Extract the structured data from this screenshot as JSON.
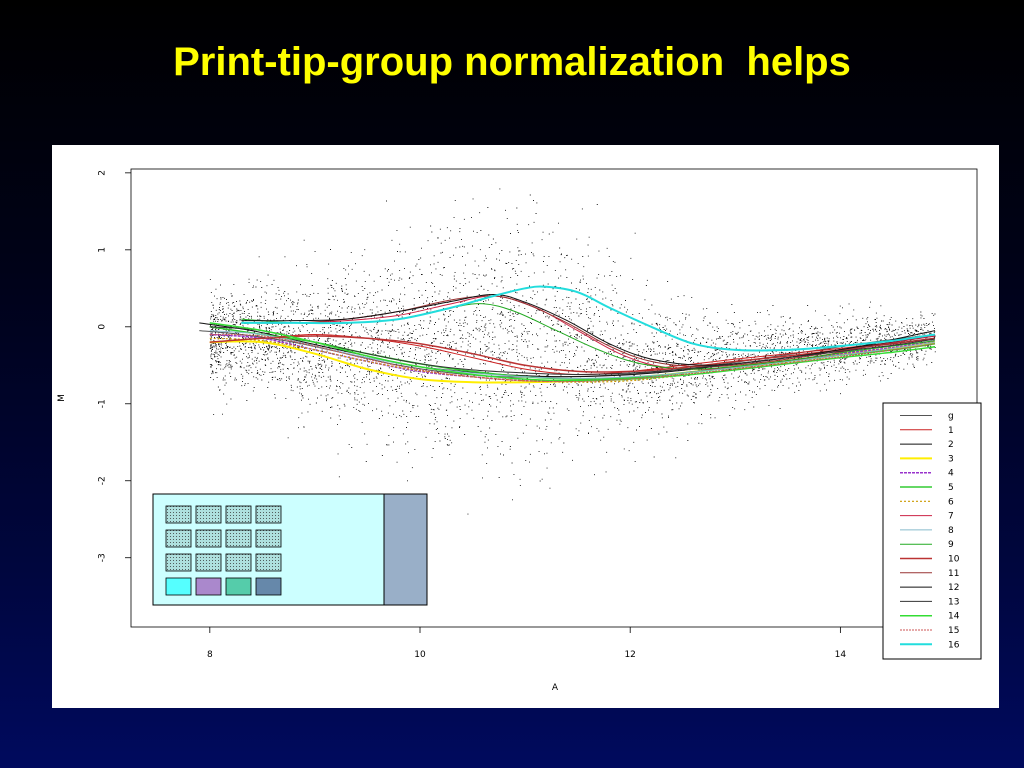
{
  "slide": {
    "title": "Print-tip-group normalization  helps"
  },
  "colors": {
    "title": "#ffff00",
    "panel_bg": "#ffffff",
    "array_bg": "#ccffff",
    "array_bar": "#99afc8",
    "tip_pad_fill": "#aee0de"
  },
  "chart_data": {
    "type": "scatter",
    "xlabel": "A",
    "ylabel": "M",
    "xlim": [
      7.25,
      15.3
    ],
    "ylim": [
      -3.9,
      2.05
    ],
    "x_ticks": [
      8,
      10,
      12,
      14
    ],
    "y_ticks": [
      2,
      1,
      0,
      -1,
      -2,
      -3
    ],
    "grid": false,
    "legend_position": "bottom-right",
    "scatter_cloud": {
      "description_points": "approx 5000 points clustered around M=0 at A 8-10, spreading up to M~1.8 near A=11 and tapering to M~-0.2 at A 13-15",
      "bands": [
        {
          "a": 8.0,
          "center": -0.15,
          "spread": 0.28
        },
        {
          "a": 8.5,
          "center": -0.15,
          "spread": 0.35
        },
        {
          "a": 9.0,
          "center": -0.25,
          "spread": 0.45
        },
        {
          "a": 9.5,
          "center": -0.3,
          "spread": 0.55
        },
        {
          "a": 10.0,
          "center": -0.3,
          "spread": 0.65
        },
        {
          "a": 10.5,
          "center": -0.2,
          "spread": 0.75
        },
        {
          "a": 11.0,
          "center": -0.15,
          "spread": 0.75
        },
        {
          "a": 11.5,
          "center": -0.3,
          "spread": 0.6
        },
        {
          "a": 12.0,
          "center": -0.45,
          "spread": 0.45
        },
        {
          "a": 12.5,
          "center": -0.5,
          "spread": 0.35
        },
        {
          "a": 13.0,
          "center": -0.45,
          "spread": 0.28
        },
        {
          "a": 13.5,
          "center": -0.35,
          "spread": 0.22
        },
        {
          "a": 14.0,
          "center": -0.25,
          "spread": 0.2
        },
        {
          "a": 14.5,
          "center": -0.2,
          "spread": 0.18
        },
        {
          "a": 14.8,
          "center": -0.15,
          "spread": 0.15
        }
      ]
    },
    "series": [
      {
        "name": "g",
        "color": "#555555",
        "dash": "",
        "width": 1,
        "x": [
          7.9,
          8.3,
          8.8,
          9.3,
          9.8,
          10.3,
          10.8,
          11.3,
          11.8,
          12.3,
          12.8,
          13.3,
          13.8,
          14.3,
          14.9
        ],
        "y": [
          -0.05,
          -0.1,
          -0.2,
          -0.35,
          -0.5,
          -0.6,
          -0.65,
          -0.65,
          -0.63,
          -0.58,
          -0.5,
          -0.4,
          -0.3,
          -0.2,
          -0.1
        ]
      },
      {
        "name": "1",
        "color": "#cc2222",
        "dash": "",
        "width": 1,
        "x": [
          8.0,
          8.5,
          9.0,
          9.5,
          10.0,
          10.5,
          11.0,
          11.5,
          12.0,
          12.5,
          13.0,
          13.5,
          14.0,
          14.5,
          14.9
        ],
        "y": [
          -0.2,
          -0.15,
          -0.1,
          -0.15,
          -0.25,
          -0.4,
          -0.55,
          -0.62,
          -0.58,
          -0.5,
          -0.42,
          -0.35,
          -0.28,
          -0.2,
          -0.1
        ]
      },
      {
        "name": "2",
        "color": "#111111",
        "dash": "",
        "width": 1,
        "x": [
          7.9,
          8.4,
          8.9,
          9.4,
          9.9,
          10.4,
          10.9,
          11.4,
          11.9,
          12.4,
          12.9,
          13.4,
          13.9,
          14.4,
          14.9
        ],
        "y": [
          0.05,
          -0.05,
          -0.2,
          -0.35,
          -0.5,
          -0.58,
          -0.63,
          -0.65,
          -0.63,
          -0.58,
          -0.5,
          -0.42,
          -0.32,
          -0.22,
          -0.12
        ]
      },
      {
        "name": "3",
        "color": "#ffee00",
        "dash": "",
        "width": 2,
        "x": [
          8.0,
          8.5,
          9.0,
          9.5,
          10.0,
          10.5,
          11.0,
          11.5,
          12.0,
          12.5,
          13.0,
          13.5,
          14.0,
          14.5,
          14.9
        ],
        "y": [
          -0.2,
          -0.2,
          -0.35,
          -0.55,
          -0.68,
          -0.72,
          -0.72,
          -0.7,
          -0.66,
          -0.6,
          -0.52,
          -0.44,
          -0.36,
          -0.28,
          -0.2
        ]
      },
      {
        "name": "4",
        "color": "#9933cc",
        "dash": "3,1",
        "width": 1.5,
        "x": [
          8.0,
          8.5,
          9.0,
          9.5,
          10.0,
          10.5,
          11.0,
          11.5,
          12.0,
          12.5,
          13.0,
          13.5,
          14.0,
          14.5,
          14.9
        ],
        "y": [
          -0.1,
          -0.15,
          -0.3,
          -0.45,
          -0.58,
          -0.65,
          -0.7,
          -0.7,
          -0.67,
          -0.6,
          -0.52,
          -0.44,
          -0.35,
          -0.27,
          -0.18
        ]
      },
      {
        "name": "5",
        "color": "#33cc33",
        "dash": "",
        "width": 1.5,
        "x": [
          8.0,
          8.5,
          9.0,
          9.5,
          10.0,
          10.5,
          11.0,
          11.5,
          12.0,
          12.5,
          13.0,
          13.5,
          14.0,
          14.5,
          14.9
        ],
        "y": [
          0.0,
          -0.1,
          -0.2,
          -0.35,
          -0.48,
          -0.58,
          -0.65,
          -0.68,
          -0.66,
          -0.6,
          -0.53,
          -0.45,
          -0.37,
          -0.3,
          -0.22
        ]
      },
      {
        "name": "6",
        "color": "#cc9900",
        "dash": "2,2",
        "width": 1.2,
        "x": [
          8.0,
          8.5,
          9.0,
          9.5,
          10.0,
          10.5,
          11.0,
          11.5,
          12.0,
          12.5,
          13.0,
          13.5,
          14.0,
          14.5,
          14.9
        ],
        "y": [
          -0.15,
          -0.18,
          -0.3,
          -0.45,
          -0.57,
          -0.65,
          -0.7,
          -0.72,
          -0.7,
          -0.63,
          -0.55,
          -0.46,
          -0.37,
          -0.28,
          -0.2
        ]
      },
      {
        "name": "7",
        "color": "#cc2244",
        "dash": "",
        "width": 1,
        "x": [
          8.3,
          8.8,
          9.3,
          9.8,
          10.3,
          10.7,
          11.1,
          11.5,
          11.9,
          12.3,
          12.8,
          13.3,
          13.8,
          14.3,
          14.9
        ],
        "y": [
          0.05,
          0.05,
          0.08,
          0.15,
          0.3,
          0.4,
          0.25,
          -0.05,
          -0.35,
          -0.52,
          -0.55,
          -0.48,
          -0.38,
          -0.25,
          -0.12
        ]
      },
      {
        "name": "8",
        "color": "#88bbcc",
        "dash": "",
        "width": 1,
        "x": [
          8.0,
          8.5,
          9.0,
          9.5,
          10.0,
          10.5,
          11.0,
          11.5,
          12.0,
          12.5,
          13.0,
          13.5,
          14.0,
          14.5,
          14.9
        ],
        "y": [
          -0.05,
          -0.1,
          -0.25,
          -0.4,
          -0.52,
          -0.6,
          -0.65,
          -0.67,
          -0.65,
          -0.6,
          -0.53,
          -0.45,
          -0.37,
          -0.28,
          -0.2
        ]
      },
      {
        "name": "9",
        "color": "#22aa22",
        "dash": "",
        "width": 1,
        "x": [
          8.3,
          8.8,
          9.3,
          9.8,
          10.3,
          10.6,
          10.9,
          11.3,
          11.7,
          12.1,
          12.6,
          13.1,
          13.6,
          14.1,
          14.9
        ],
        "y": [
          0.1,
          0.05,
          0.05,
          0.1,
          0.25,
          0.3,
          0.2,
          -0.05,
          -0.3,
          -0.48,
          -0.55,
          -0.5,
          -0.42,
          -0.32,
          -0.18
        ]
      },
      {
        "name": "10",
        "color": "#bb3333",
        "dash": "",
        "width": 1.5,
        "x": [
          8.0,
          8.5,
          9.0,
          9.5,
          10.0,
          10.5,
          11.0,
          11.5,
          12.0,
          12.5,
          13.0,
          13.5,
          14.0,
          14.5,
          14.9
        ],
        "y": [
          -0.2,
          -0.15,
          -0.12,
          -0.15,
          -0.22,
          -0.35,
          -0.5,
          -0.58,
          -0.58,
          -0.53,
          -0.45,
          -0.38,
          -0.3,
          -0.22,
          -0.15
        ]
      },
      {
        "name": "11",
        "color": "#993333",
        "dash": "",
        "width": 1,
        "x": [
          8.3,
          8.8,
          9.3,
          9.8,
          10.3,
          10.7,
          11.0,
          11.4,
          11.8,
          12.2,
          12.7,
          13.2,
          13.7,
          14.2,
          14.9
        ],
        "y": [
          0.05,
          0.05,
          0.1,
          0.2,
          0.35,
          0.4,
          0.3,
          0.05,
          -0.25,
          -0.45,
          -0.52,
          -0.47,
          -0.38,
          -0.27,
          -0.15
        ]
      },
      {
        "name": "12",
        "color": "#111111",
        "dash": "",
        "width": 1,
        "x": [
          8.3,
          8.8,
          9.3,
          9.8,
          10.3,
          10.7,
          11.0,
          11.4,
          11.8,
          12.2,
          12.7,
          13.2,
          13.7,
          14.2,
          14.9
        ],
        "y": [
          0.08,
          0.08,
          0.1,
          0.2,
          0.33,
          0.42,
          0.32,
          0.08,
          -0.22,
          -0.42,
          -0.5,
          -0.45,
          -0.36,
          -0.25,
          -0.05
        ]
      },
      {
        "name": "13",
        "color": "#333333",
        "dash": "",
        "width": 1,
        "x": [
          8.0,
          8.5,
          9.0,
          9.5,
          10.0,
          10.5,
          11.0,
          11.5,
          12.0,
          12.5,
          13.0,
          13.5,
          14.0,
          14.5,
          14.9
        ],
        "y": [
          0.0,
          -0.05,
          -0.2,
          -0.35,
          -0.48,
          -0.56,
          -0.6,
          -0.62,
          -0.6,
          -0.55,
          -0.48,
          -0.4,
          -0.32,
          -0.24,
          -0.16
        ]
      },
      {
        "name": "14",
        "color": "#33dd33",
        "dash": "",
        "width": 1.5,
        "x": [
          8.0,
          8.5,
          9.0,
          9.5,
          10.0,
          10.5,
          11.0,
          11.5,
          12.0,
          12.5,
          13.0,
          13.5,
          14.0,
          14.5,
          14.9
        ],
        "y": [
          0.05,
          -0.05,
          -0.2,
          -0.38,
          -0.52,
          -0.62,
          -0.68,
          -0.7,
          -0.68,
          -0.63,
          -0.56,
          -0.48,
          -0.4,
          -0.33,
          -0.26
        ]
      },
      {
        "name": "15",
        "color": "#cc5555",
        "dash": "2,1",
        "width": 1,
        "x": [
          8.0,
          8.5,
          9.0,
          9.5,
          10.0,
          10.5,
          11.0,
          11.5,
          12.0,
          12.5,
          13.0,
          13.5,
          14.0,
          14.5,
          14.9
        ],
        "y": [
          -0.1,
          -0.12,
          -0.25,
          -0.42,
          -0.56,
          -0.65,
          -0.7,
          -0.71,
          -0.68,
          -0.62,
          -0.55,
          -0.47,
          -0.39,
          -0.3,
          -0.22
        ]
      },
      {
        "name": "16",
        "color": "#22dddd",
        "dash": "",
        "width": 2,
        "x": [
          8.3,
          8.8,
          9.3,
          9.8,
          10.3,
          10.7,
          11.0,
          11.2,
          11.5,
          11.8,
          12.2,
          12.6,
          13.0,
          13.5,
          14.0,
          14.5,
          14.9
        ],
        "y": [
          0.05,
          0.05,
          0.05,
          0.1,
          0.25,
          0.4,
          0.5,
          0.52,
          0.45,
          0.25,
          0.0,
          -0.22,
          -0.3,
          -0.3,
          -0.25,
          -0.18,
          -0.1
        ]
      }
    ],
    "inset_array": {
      "rows": 4,
      "cols": 4,
      "bottom_row_colors": [
        "#55ffff",
        "#aa88cc",
        "#55ccaa",
        "#6688aa"
      ]
    }
  }
}
